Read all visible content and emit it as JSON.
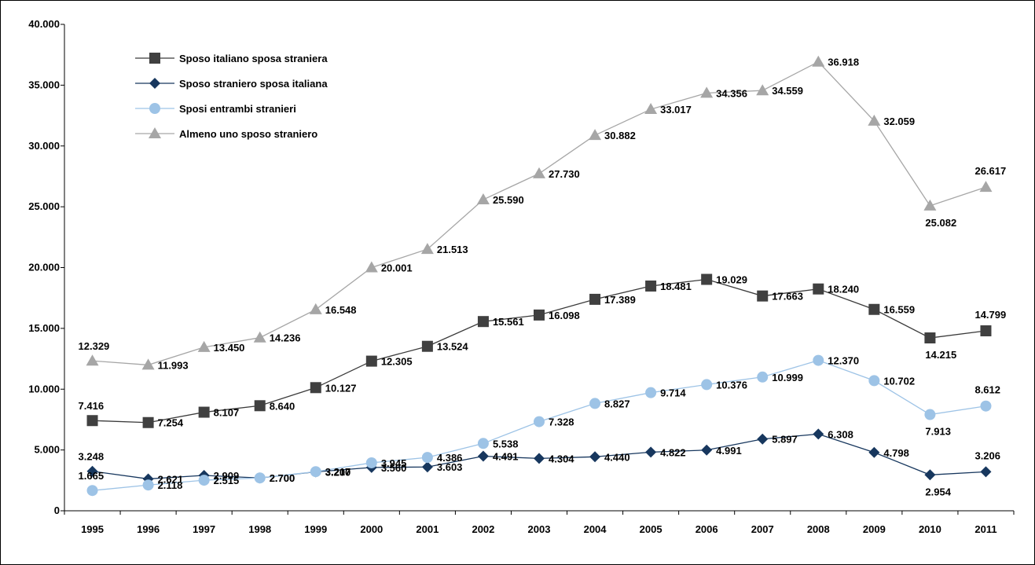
{
  "chart_data": {
    "type": "line",
    "title": "",
    "xlabel": "",
    "ylabel": "",
    "ylim": [
      0,
      40000
    ],
    "yticks": [
      0,
      5000,
      10000,
      15000,
      20000,
      25000,
      30000,
      35000,
      40000
    ],
    "ytick_labels": [
      "0",
      "5.000",
      "10.000",
      "15.000",
      "20.000",
      "25.000",
      "30.000",
      "35.000",
      "40.000"
    ],
    "grid": false,
    "legend_position": "top-left",
    "categories": [
      "1995",
      "1996",
      "1997",
      "1998",
      "1999",
      "2000",
      "2001",
      "2002",
      "2003",
      "2004",
      "2005",
      "2006",
      "2007",
      "2008",
      "2009",
      "2010",
      "2011"
    ],
    "series": [
      {
        "name": "Sposo italiano sposa straniera",
        "marker": "square",
        "color": "#404040",
        "line_color": "#3a3a3a",
        "values": [
          7416,
          7254,
          8107,
          8640,
          10127,
          12305,
          13524,
          15561,
          16098,
          17389,
          18481,
          19029,
          17663,
          18240,
          16559,
          14215,
          14799
        ],
        "labels": [
          "7.416",
          "7.254",
          "8.107",
          "8.640",
          "10.127",
          "12.305",
          "13.524",
          "15.561",
          "16.098",
          "17.389",
          "18.481",
          "19.029",
          "17.663",
          "18.240",
          "16.559",
          "14.215",
          "14.799"
        ]
      },
      {
        "name": "Sposo straniero sposa italiana",
        "marker": "diamond",
        "color": "#17375e",
        "line_color": "#17375e",
        "values": [
          3248,
          2621,
          2909,
          2700,
          3200,
          3560,
          3603,
          4491,
          4304,
          4440,
          4822,
          4991,
          5897,
          6308,
          4798,
          2954,
          3206
        ],
        "labels": [
          "3.248",
          "2.621",
          "2.909",
          "2.700",
          "3.200",
          "3.560",
          "3.603",
          "4.491",
          "4.304",
          "4.440",
          "4.822",
          "4.991",
          "5.897",
          "6.308",
          "4.798",
          "2.954",
          "3.206"
        ]
      },
      {
        "name": "Sposi entrambi stranieri",
        "marker": "circle",
        "color": "#9dc3e6",
        "line_color": "#9dc3e6",
        "values": [
          1665,
          2118,
          2515,
          2700,
          3217,
          3945,
          4386,
          5538,
          7328,
          8827,
          9714,
          10376,
          10999,
          12370,
          10702,
          7913,
          8612
        ],
        "labels": [
          "1.665",
          "2.118",
          "2.515",
          "2.700",
          "3.217",
          "3.945",
          "4.386",
          "5.538",
          "7.328",
          "8.827",
          "9.714",
          "10.376",
          "10.999",
          "12.370",
          "10.702",
          "7.913",
          "8.612"
        ]
      },
      {
        "name": "Almeno uno sposo straniero",
        "marker": "triangle",
        "color": "#a6a6a6",
        "line_color": "#a6a6a6",
        "values": [
          12329,
          11993,
          13450,
          14236,
          16548,
          20001,
          21513,
          25590,
          27730,
          30882,
          33017,
          34356,
          34559,
          36918,
          32059,
          25082,
          26617
        ],
        "labels": [
          "12.329",
          "11.993",
          "13.450",
          "14.236",
          "16.548",
          "20.001",
          "21.513",
          "25.590",
          "27.730",
          "30.882",
          "33.017",
          "34.356",
          "34.559",
          "36.918",
          "32.059",
          "25.082",
          "26.617"
        ]
      }
    ]
  }
}
